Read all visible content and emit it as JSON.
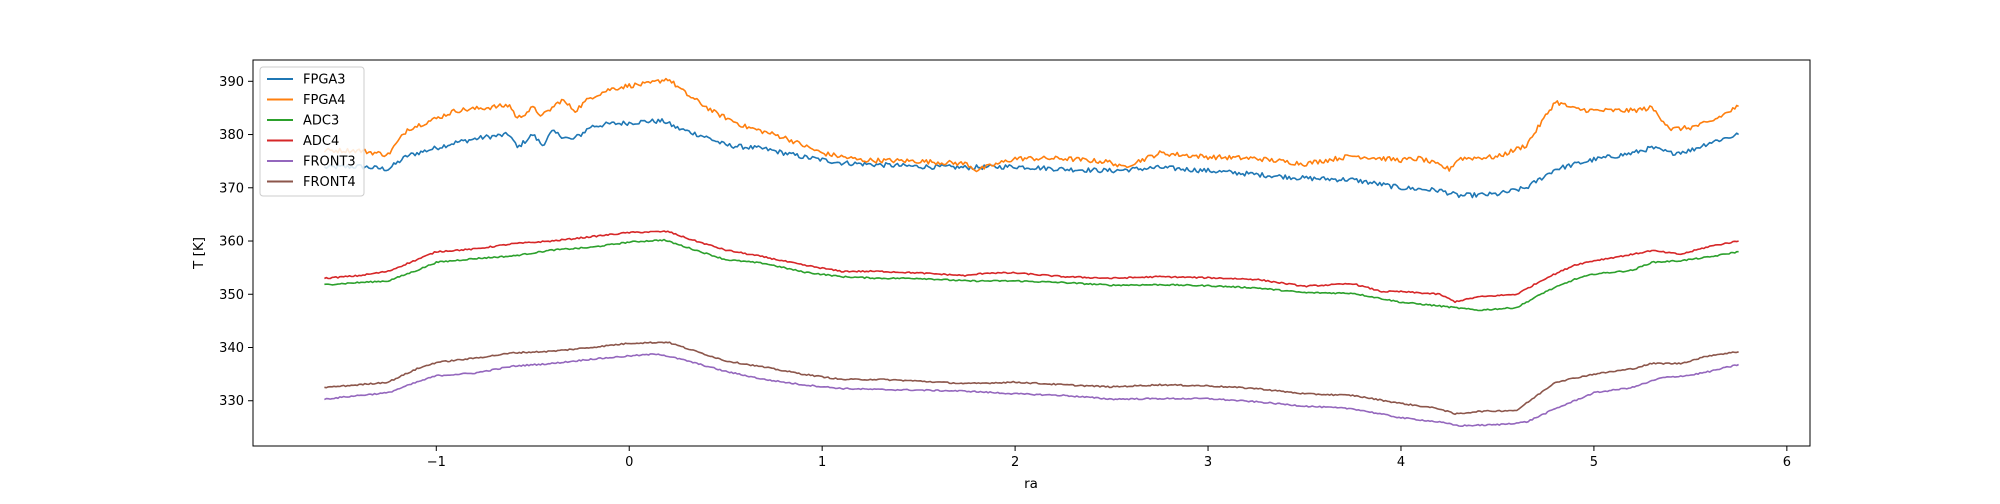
{
  "chart_data": {
    "type": "line",
    "title": "",
    "xlabel": "ra",
    "ylabel": "T [K]",
    "xlim": [
      -1.95,
      6.12
    ],
    "ylim": [
      321.5,
      394
    ],
    "xticks": [
      -1,
      0,
      1,
      2,
      3,
      4,
      5,
      6
    ],
    "xtick_labels": [
      "−1",
      "0",
      "1",
      "2",
      "3",
      "4",
      "5",
      "6"
    ],
    "yticks": [
      330,
      340,
      350,
      360,
      370,
      380,
      390
    ],
    "ytick_labels": [
      "330",
      "340",
      "350",
      "360",
      "370",
      "380",
      "390"
    ],
    "grid": false,
    "legend": "top-left",
    "series": [
      {
        "name": "FPGA3",
        "color": "#1f77b4",
        "x": [
          -1.58,
          -1.4,
          -1.25,
          -1.15,
          -1.0,
          -0.9,
          -0.75,
          -0.62,
          -0.58,
          -0.5,
          -0.45,
          -0.4,
          -0.3,
          -0.25,
          -0.2,
          -0.1,
          0.0,
          0.1,
          0.18,
          0.25,
          0.4,
          0.5,
          0.7,
          0.9,
          1.1,
          1.3,
          1.5,
          1.75,
          2.0,
          2.25,
          2.5,
          2.75,
          3.0,
          3.25,
          3.5,
          3.75,
          4.0,
          4.2,
          4.3,
          4.5,
          4.65,
          4.8,
          5.0,
          5.2,
          5.3,
          5.4,
          5.5,
          5.6,
          5.75
        ],
        "values": [
          373.8,
          374,
          373.5,
          376,
          377.5,
          378.5,
          379.5,
          380,
          377.5,
          380,
          378,
          380.5,
          379,
          380,
          381.5,
          382,
          382.2,
          382.5,
          382.5,
          381.2,
          379.5,
          378,
          377.3,
          375.8,
          374.7,
          374.3,
          374,
          373.8,
          374,
          373.5,
          373.2,
          373.8,
          373.2,
          372.5,
          371.8,
          371.5,
          370,
          369.5,
          368.5,
          368.8,
          370,
          373.5,
          375.3,
          376.5,
          377.5,
          376.5,
          377,
          378.5,
          380
        ]
      },
      {
        "name": "FPGA4",
        "color": "#ff7f0e",
        "x": [
          -1.58,
          -1.4,
          -1.25,
          -1.15,
          -1.0,
          -0.9,
          -0.75,
          -0.62,
          -0.58,
          -0.5,
          -0.45,
          -0.35,
          -0.28,
          -0.2,
          -0.1,
          0.0,
          0.1,
          0.2,
          0.3,
          0.45,
          0.6,
          0.8,
          1.0,
          1.2,
          1.5,
          1.75,
          1.8,
          2.0,
          2.25,
          2.5,
          2.55,
          2.75,
          3.0,
          3.25,
          3.5,
          3.75,
          4.0,
          4.1,
          4.25,
          4.3,
          4.5,
          4.65,
          4.8,
          4.9,
          5.0,
          5.2,
          5.3,
          5.4,
          5.5,
          5.6,
          5.75
        ],
        "values": [
          377,
          377,
          376.2,
          381,
          383,
          384.5,
          385,
          385.5,
          383,
          385,
          383.5,
          386.5,
          384.5,
          387,
          388.5,
          389.2,
          389.5,
          390.5,
          387.5,
          384,
          381.5,
          379.5,
          376.5,
          375.2,
          375,
          374.5,
          373.3,
          375.5,
          375.5,
          374.8,
          373.8,
          376.5,
          375.8,
          375.5,
          374.5,
          376,
          375.2,
          375.5,
          373.5,
          375.5,
          375.8,
          378,
          386.2,
          384.8,
          384.5,
          384.5,
          385,
          381,
          381.3,
          382.3,
          385.3
        ]
      },
      {
        "name": "ADC3",
        "color": "#2ca02c",
        "x": [
          -1.58,
          -1.4,
          -1.25,
          -1.1,
          -1.0,
          -0.8,
          -0.6,
          -0.4,
          -0.2,
          0.0,
          0.18,
          0.3,
          0.5,
          0.7,
          0.9,
          1.1,
          1.3,
          1.5,
          1.75,
          2.0,
          2.25,
          2.5,
          2.75,
          3.0,
          3.25,
          3.5,
          3.75,
          4.0,
          4.2,
          4.4,
          4.6,
          4.75,
          4.9,
          5.0,
          5.2,
          5.3,
          5.45,
          5.6,
          5.75
        ],
        "values": [
          351.8,
          352.2,
          352.5,
          354.5,
          356,
          356.7,
          357.2,
          358.3,
          358.8,
          359.8,
          360.2,
          358.8,
          356.5,
          355.8,
          354.2,
          353.3,
          353,
          353,
          352.5,
          352.5,
          352.2,
          351.7,
          351.8,
          351.6,
          351.2,
          350.3,
          350.2,
          348.5,
          347.8,
          347,
          347.5,
          350.5,
          352.8,
          353.8,
          354.5,
          356,
          356.3,
          357,
          358
        ]
      },
      {
        "name": "ADC4",
        "color": "#d62728",
        "x": [
          -1.58,
          -1.4,
          -1.25,
          -1.1,
          -1.0,
          -0.8,
          -0.6,
          -0.4,
          -0.2,
          0.0,
          0.2,
          0.3,
          0.5,
          0.7,
          0.9,
          1.1,
          1.3,
          1.5,
          1.75,
          1.85,
          2.0,
          2.25,
          2.5,
          2.75,
          3.0,
          3.25,
          3.5,
          3.75,
          3.9,
          4.0,
          4.2,
          4.28,
          4.4,
          4.6,
          4.75,
          4.9,
          5.0,
          5.2,
          5.3,
          5.45,
          5.6,
          5.75
        ],
        "values": [
          353,
          353.5,
          354.3,
          356.5,
          358,
          358.5,
          359.5,
          360,
          360.8,
          361.6,
          361.8,
          360.5,
          358.3,
          357,
          355.5,
          354.3,
          354.3,
          354,
          353.5,
          354,
          354,
          353.3,
          353,
          353.3,
          353.1,
          352.8,
          351.5,
          352,
          350.5,
          350.5,
          350,
          348.6,
          349.5,
          350,
          353,
          355.5,
          356.3,
          357.5,
          358.2,
          357.5,
          359,
          360
        ]
      },
      {
        "name": "FRONT3",
        "color": "#9467bd",
        "x": [
          -1.58,
          -1.4,
          -1.25,
          -1.1,
          -1.0,
          -0.8,
          -0.6,
          -0.4,
          -0.2,
          0.0,
          0.15,
          0.3,
          0.5,
          0.7,
          0.9,
          1.1,
          1.3,
          1.5,
          1.75,
          2.0,
          2.25,
          2.5,
          2.75,
          3.0,
          3.25,
          3.5,
          3.75,
          4.0,
          4.2,
          4.3,
          4.5,
          4.65,
          4.8,
          5.0,
          5.2,
          5.35,
          5.5,
          5.6,
          5.75
        ],
        "values": [
          330.3,
          331,
          331.5,
          333.5,
          334.7,
          335.2,
          336.5,
          337,
          337.8,
          338.4,
          338.8,
          337.5,
          335.5,
          334,
          333,
          332.3,
          332.1,
          332,
          331.8,
          331.3,
          331,
          330.3,
          330.4,
          330.4,
          329.8,
          329,
          328.5,
          326.8,
          326,
          325.3,
          325.5,
          326,
          328.5,
          331.5,
          332.5,
          334.3,
          334.8,
          335.5,
          336.8
        ]
      },
      {
        "name": "FRONT4",
        "color": "#8c564b",
        "x": [
          -1.58,
          -1.4,
          -1.25,
          -1.1,
          -1.0,
          -0.8,
          -0.6,
          -0.4,
          -0.2,
          0.0,
          0.2,
          0.3,
          0.5,
          0.7,
          0.9,
          1.1,
          1.3,
          1.5,
          1.75,
          2.0,
          2.25,
          2.5,
          2.75,
          3.0,
          3.25,
          3.5,
          3.75,
          4.0,
          4.2,
          4.28,
          4.4,
          4.6,
          4.8,
          5.0,
          5.2,
          5.3,
          5.45,
          5.6,
          5.75
        ],
        "values": [
          332.5,
          333,
          333.5,
          336,
          337.2,
          338,
          339,
          339.3,
          340,
          340.8,
          341,
          339.8,
          337.5,
          336.3,
          335,
          334,
          334,
          333.7,
          333.2,
          333.5,
          333,
          332.6,
          333,
          332.8,
          332.3,
          331.3,
          331,
          329.5,
          328.5,
          327.5,
          328,
          328.2,
          333.5,
          335,
          336,
          337,
          337,
          338.5,
          339.2
        ]
      }
    ]
  }
}
